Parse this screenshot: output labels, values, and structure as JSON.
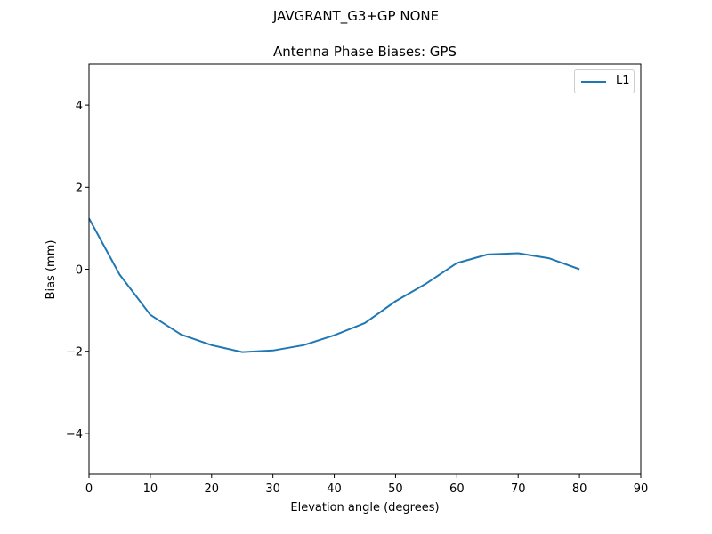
{
  "figure": {
    "suptitle": "JAVGRANT_G3+GP  NONE",
    "title": "Antenna Phase Biases: GPS"
  },
  "colors": {
    "series": "#1f77b4",
    "axes": "#000000",
    "legend_border": "#cccccc"
  },
  "chart_data": {
    "type": "line",
    "title": "Antenna Phase Biases: GPS",
    "suptitle": "JAVGRANT_G3+GP  NONE",
    "xlabel": "Elevation angle (degrees)",
    "ylabel": "Bias (mm)",
    "xlim": [
      0,
      90
    ],
    "ylim": [
      -5,
      5
    ],
    "xticks": [
      0,
      10,
      20,
      30,
      40,
      50,
      60,
      70,
      80,
      90
    ],
    "yticks": [
      -4,
      -2,
      0,
      2,
      4
    ],
    "ytick_labels": [
      "−4",
      "−2",
      "0",
      "2",
      "4"
    ],
    "grid": false,
    "legend_position": "upper right",
    "x": [
      0,
      5,
      10,
      15,
      20,
      25,
      30,
      35,
      40,
      45,
      50,
      55,
      60,
      65,
      70,
      75,
      80
    ],
    "series": [
      {
        "name": "L1",
        "color": "#1f77b4",
        "values": [
          1.24,
          -0.13,
          -1.11,
          -1.59,
          -1.85,
          -2.02,
          -1.98,
          -1.85,
          -1.61,
          -1.31,
          -0.78,
          -0.35,
          0.15,
          0.36,
          0.39,
          0.27,
          0.0
        ]
      }
    ]
  }
}
